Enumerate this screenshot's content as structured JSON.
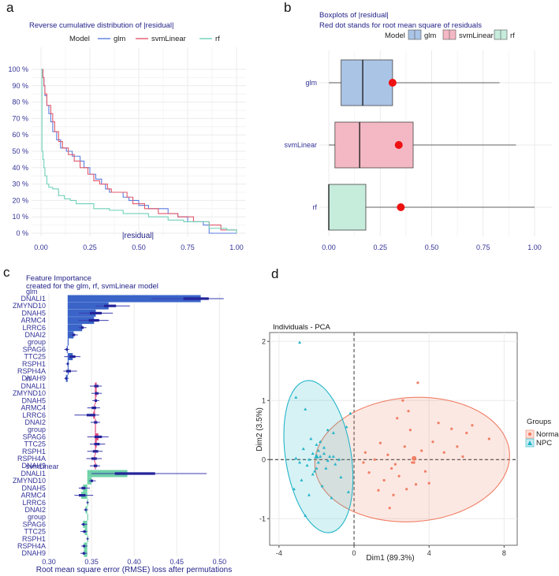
{
  "panels": {
    "a": "a",
    "b": "b",
    "c": "c",
    "d": "d"
  },
  "colors": {
    "glm": "#5b7ee0",
    "svmLinear": "#e0596b",
    "rf": "#6fd1b8",
    "navy": "#222288",
    "box_glm": "#aac4e6",
    "box_svm": "#f4b8c4",
    "box_rf": "#c6ecdc",
    "red_dot": "#ee1111",
    "normal": "#f07f65",
    "npc": "#23b5c8"
  },
  "chart_data": [
    {
      "id": "a",
      "type": "line",
      "title": "Reverse cumulative distribution of |residual|",
      "xlabel": "|residual|",
      "ylabel": "",
      "xlim": [
        0,
        1.0
      ],
      "ylim": [
        0,
        100
      ],
      "xticks": [
        "0.00",
        "0.25",
        "0.50",
        "0.75",
        "1.00"
      ],
      "yticks": [
        "0 %",
        "10 %",
        "20 %",
        "30 %",
        "40 %",
        "50 %",
        "60 %",
        "70 %",
        "80 %",
        "90 %",
        "100 %"
      ],
      "legend": {
        "title": "Model",
        "entries": [
          "glm",
          "svmLinear",
          "rf"
        ],
        "position": "top"
      },
      "series": [
        {
          "name": "glm",
          "x": [
            0,
            0.01,
            0.015,
            0.02,
            0.03,
            0.04,
            0.05,
            0.06,
            0.08,
            0.1,
            0.13,
            0.16,
            0.2,
            0.22,
            0.25,
            0.28,
            0.31,
            0.33,
            0.35,
            0.42,
            0.45,
            0.5,
            0.55,
            0.65,
            0.7,
            0.75,
            0.83,
            0.86,
            1.0
          ],
          "y": [
            100,
            95,
            90,
            84,
            78,
            73,
            68,
            62,
            57,
            52,
            50,
            47,
            44,
            40,
            36,
            33,
            30,
            27,
            25,
            22,
            20,
            17,
            15,
            12,
            10,
            7,
            5,
            0,
            0
          ]
        },
        {
          "name": "svmLinear",
          "x": [
            0,
            0.01,
            0.015,
            0.02,
            0.03,
            0.05,
            0.06,
            0.07,
            0.09,
            0.11,
            0.14,
            0.17,
            0.2,
            0.24,
            0.27,
            0.3,
            0.34,
            0.36,
            0.44,
            0.47,
            0.53,
            0.6,
            0.7,
            0.78,
            0.86,
            0.92,
            1.0
          ],
          "y": [
            100,
            95,
            90,
            85,
            78,
            73,
            68,
            62,
            56,
            52,
            48,
            44,
            40,
            36,
            32,
            30,
            27,
            25,
            22,
            18,
            15,
            12,
            10,
            7,
            5,
            2,
            0
          ]
        },
        {
          "name": "rf",
          "x": [
            0,
            0.005,
            0.01,
            0.015,
            0.02,
            0.03,
            0.04,
            0.06,
            0.09,
            0.12,
            0.15,
            0.18,
            0.27,
            0.35,
            0.42,
            0.55,
            0.65,
            0.73,
            0.86,
            0.95,
            1.0
          ],
          "y": [
            100,
            50,
            45,
            40,
            35,
            30,
            28,
            27,
            23,
            21,
            20,
            18,
            15,
            14,
            12,
            10,
            8,
            7,
            3,
            2,
            0
          ]
        }
      ]
    },
    {
      "id": "b",
      "type": "boxplot",
      "title": "Boxplots of |residual|",
      "subtitle": "Red dot stands for root mean square of residuals",
      "xlim": [
        0,
        1.0
      ],
      "xticks": [
        "0.00",
        "0.25",
        "0.50",
        "0.75",
        "1.00"
      ],
      "legend": {
        "title": "Model",
        "entries": [
          "glm",
          "svmLinear",
          "rf"
        ],
        "position": "top"
      },
      "boxes": [
        {
          "name": "glm",
          "min": 0.0,
          "q1": 0.06,
          "median": 0.165,
          "q3": 0.31,
          "max": 0.83,
          "rmse": 0.31
        },
        {
          "name": "svmLinear",
          "min": 0.0,
          "q1": 0.03,
          "median": 0.15,
          "q3": 0.41,
          "max": 0.91,
          "rmse": 0.34
        },
        {
          "name": "rf",
          "min": 0.0,
          "q1": 0.0,
          "median": 0.0,
          "q3": 0.18,
          "max": 1.0,
          "rmse": 0.35
        }
      ]
    },
    {
      "id": "c",
      "type": "bar",
      "title": "Feature Importance",
      "subtitle": "created for the glm, rf, svmLinear model",
      "xlabel": "Root mean square error (RMSE) loss after permutations",
      "xlim": [
        0.3,
        0.52
      ],
      "xticks": [
        "0.30",
        "0.35",
        "0.40",
        "0.45",
        "0.50"
      ],
      "base": 0.322,
      "facets": [
        {
          "name": "glm",
          "base": 0.322,
          "features": [
            "DNALI1",
            "ZMYND10",
            "DNAH5",
            "ARMC4",
            "LRRC6",
            "DNAI2",
            "group",
            "SPAG6",
            "TTC25",
            "RSPH1",
            "RSPH4A",
            "DNAH9"
          ],
          "values": [
            0.478,
            0.37,
            0.355,
            0.353,
            0.339,
            0.329,
            0.322,
            0.321,
            0.328,
            0.322,
            0.322,
            0.32
          ],
          "lo": [
            0.42,
            0.355,
            0.335,
            0.335,
            0.335,
            0.325,
            0.322,
            0.318,
            0.318,
            0.32,
            0.317,
            0.318
          ],
          "hi": [
            0.505,
            0.395,
            0.375,
            0.37,
            0.344,
            0.334,
            0.322,
            0.324,
            0.337,
            0.324,
            0.333,
            0.323
          ]
        },
        {
          "name": "rf",
          "base": 0.354,
          "features": [
            "DNALI1",
            "ZMYND10",
            "DNAH5",
            "ARMC4",
            "LRRC6",
            "DNAI2",
            "group",
            "SPAG6",
            "TTC25",
            "RSPH1",
            "RSPH4A",
            "DNAH9"
          ],
          "values": [
            0.356,
            0.356,
            0.355,
            0.353,
            0.352,
            0.355,
            0.354,
            0.358,
            0.356,
            0.355,
            0.353,
            0.355
          ],
          "lo": [
            0.348,
            0.35,
            0.351,
            0.345,
            0.33,
            0.349,
            0.354,
            0.345,
            0.348,
            0.345,
            0.344,
            0.348
          ],
          "hi": [
            0.362,
            0.362,
            0.359,
            0.36,
            0.359,
            0.36,
            0.354,
            0.37,
            0.366,
            0.363,
            0.362,
            0.36
          ]
        },
        {
          "name": "svmLinear",
          "base": 0.345,
          "features": [
            "DNALI1",
            "ZMYND10",
            "DNAH5",
            "ARMC4",
            "LRRC6",
            "DNAI2",
            "group",
            "SPAG6",
            "TTC25",
            "RSPH1",
            "RSPH4A",
            "DNAH9"
          ],
          "values": [
            0.392,
            0.35,
            0.34,
            0.338,
            0.345,
            0.343,
            0.345,
            0.34,
            0.342,
            0.345,
            0.341,
            0.341
          ],
          "lo": [
            0.35,
            0.347,
            0.335,
            0.33,
            0.344,
            0.341,
            0.345,
            0.338,
            0.337,
            0.344,
            0.338,
            0.337
          ],
          "hi": [
            0.485,
            0.355,
            0.348,
            0.352,
            0.347,
            0.346,
            0.345,
            0.345,
            0.345,
            0.347,
            0.345,
            0.345
          ]
        }
      ]
    },
    {
      "id": "d",
      "type": "scatter",
      "title": "Individuals - PCA",
      "xlabel": "Dim1 (89.3%)",
      "ylabel": "Dim2 (3.5%)",
      "xlim": [
        -4.5,
        8.7
      ],
      "ylim": [
        -1.45,
        2.15
      ],
      "xticks": [
        -4,
        0,
        4,
        8
      ],
      "yticks": [
        -1,
        0,
        1,
        2
      ],
      "ytick_labels": [
        "-1",
        "0",
        "1",
        "2"
      ],
      "xtick_labels": [
        "-4",
        "0",
        "4",
        "8"
      ],
      "legend": {
        "title": "Groups",
        "entries": [
          "Normal",
          "NPC"
        ],
        "position": "right"
      },
      "groups": [
        {
          "name": "Normal",
          "shape": "circle",
          "centroid": [
            3.2,
            0.02
          ],
          "ellipse": {
            "cx": 3.1,
            "cy": 0.0,
            "rx": 5.2,
            "ry": 1.05,
            "angle": -4
          },
          "x": [
            3.4,
            2.6,
            2.9,
            2.3,
            4.5,
            5.2,
            6.0,
            7.2,
            3.0,
            2.7,
            1.4,
            0.6,
            1.8,
            3.6,
            4.2,
            2.2,
            3.2,
            5.5,
            2.0,
            1.1,
            0.8,
            4.8,
            3.8,
            2.4,
            3.3,
            1.6,
            6.3,
            5.8,
            2.1,
            4.0,
            1.3,
            2.8,
            3.1,
            0.5,
            1.9
          ],
          "y": [
            1.3,
            1.0,
            0.82,
            0.7,
            0.62,
            0.52,
            0.45,
            0.35,
            0.5,
            0.22,
            0.28,
            0.12,
            0.08,
            0.15,
            0.3,
            -0.08,
            -0.05,
            0.22,
            -0.15,
            0.0,
            -0.22,
            0.12,
            -0.2,
            -0.28,
            -0.42,
            -0.35,
            0.58,
            0.05,
            -0.6,
            -0.4,
            -0.52,
            -0.5,
            -0.05,
            -0.05,
            -0.82
          ]
        },
        {
          "name": "NPC",
          "shape": "triangle",
          "centroid": [
            -2.0,
            0.05
          ],
          "ellipse": {
            "cx": -1.9,
            "cy": 0.05,
            "rx": 1.75,
            "ry": 1.3,
            "angle": -9
          },
          "x": [
            -2.9,
            -1.4,
            -0.4,
            -3.1,
            -2.6,
            -1.1,
            -2.3,
            -0.2,
            -2.7,
            -2.0,
            -1.6,
            -2.2,
            -1.8,
            -2.4,
            -1.3,
            -2.9,
            -1.9,
            -1.1,
            -2.5,
            -3.1,
            -1.5,
            -2.1,
            -0.8,
            -1.0,
            -1.6,
            -2.2,
            -2.8,
            -3.2,
            -1.7,
            -2.4,
            -1.2,
            -0.7,
            -0.3,
            -1.9,
            -2.6,
            -1.8,
            -2.0,
            -1.4
          ],
          "y": [
            1.98,
            0.5,
            0.55,
            1.05,
            0.85,
            0.45,
            0.35,
            0.78,
            0.18,
            0.25,
            0.2,
            0.1,
            0.05,
            0.0,
            0.05,
            -0.05,
            -0.05,
            0.05,
            -0.1,
            0.02,
            -0.15,
            -0.2,
            0.0,
            -0.08,
            0.1,
            -0.25,
            -0.35,
            -0.5,
            -0.45,
            -0.6,
            -0.65,
            -0.3,
            -0.55,
            0.15,
            -0.95,
            0.3,
            -0.15,
            -0.02
          ]
        }
      ]
    }
  ]
}
